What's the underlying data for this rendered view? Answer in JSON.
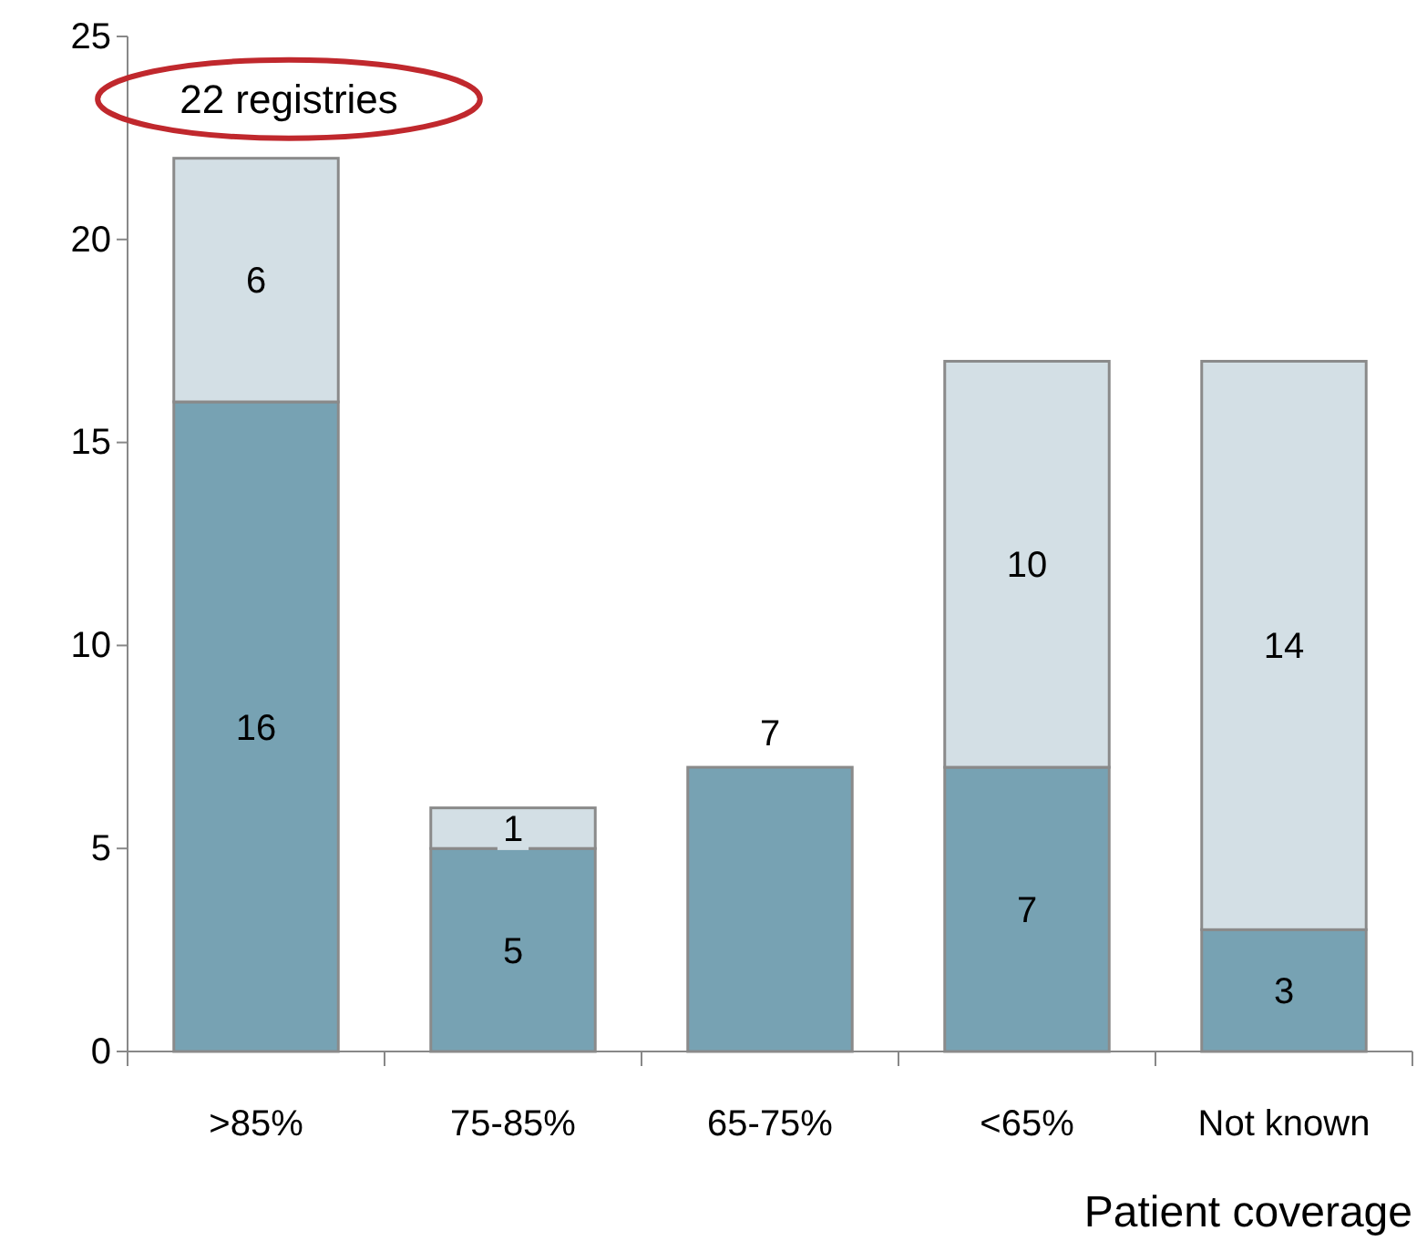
{
  "chart_data": {
    "type": "bar",
    "stacked": true,
    "xlabel": "Patient coverage",
    "categories": [
      ">85%",
      "75-85%",
      "65-75%",
      "<65%",
      "Not known"
    ],
    "series": [
      {
        "color": "#77a2b3",
        "values": [
          16,
          5,
          7,
          7,
          3
        ],
        "value_labels": [
          "16",
          "5",
          "7",
          "7",
          "3"
        ]
      },
      {
        "color": "#d3dfe5",
        "values": [
          6,
          1,
          null,
          10,
          14
        ],
        "value_labels": [
          "6",
          "1",
          null,
          "10",
          "14"
        ]
      }
    ],
    "ylim": [
      0,
      25
    ],
    "yticks": [
      0,
      5,
      10,
      15,
      20,
      25
    ],
    "grid": false,
    "annotations": [
      {
        "text": "22 registries",
        "x": ">85%",
        "y": 22
      }
    ]
  }
}
